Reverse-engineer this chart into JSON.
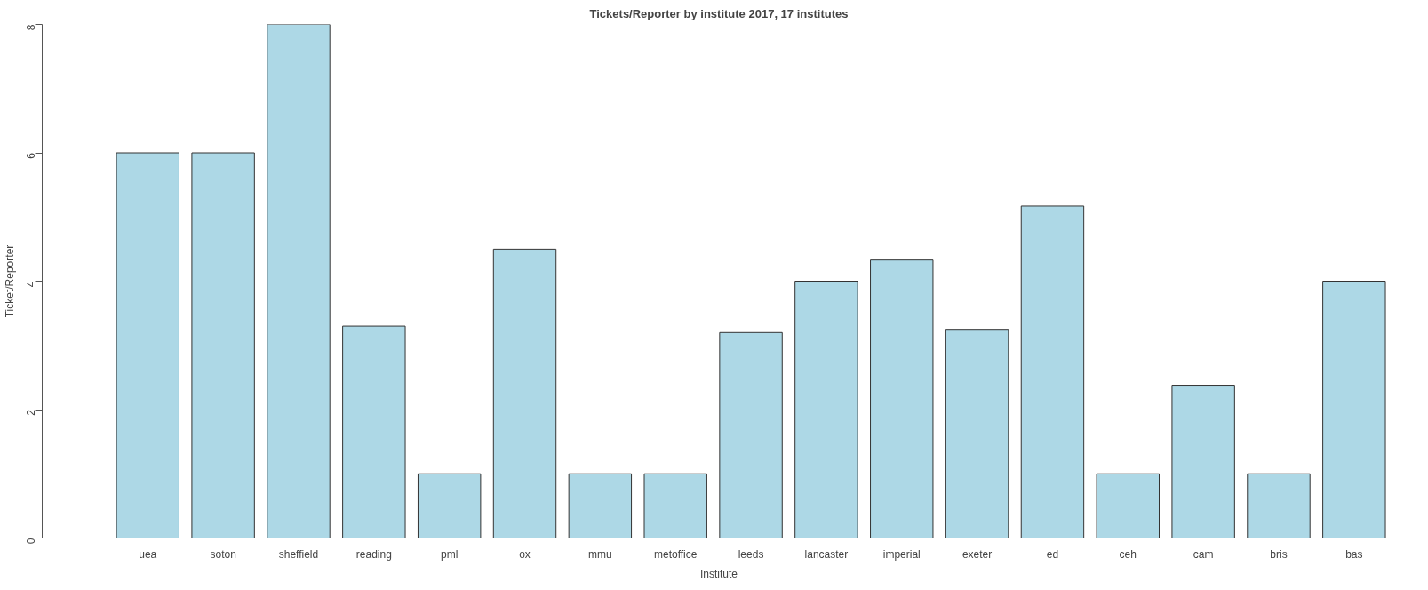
{
  "chart_data": {
    "type": "bar",
    "title": "Tickets/Reporter by institute 2017, 17 institutes",
    "xlabel": "Institute",
    "ylabel": "Ticket/Reporter",
    "categories": [
      "uea",
      "soton",
      "sheffield",
      "reading",
      "pml",
      "ox",
      "mmu",
      "metoffice",
      "leeds",
      "lancaster",
      "imperial",
      "exeter",
      "ed",
      "ceh",
      "cam",
      "bris",
      "bas"
    ],
    "values": [
      6,
      6,
      8,
      3.3,
      1,
      4.5,
      1,
      1,
      3.2,
      4,
      4.33,
      3.25,
      5.17,
      1,
      2.38,
      1,
      4
    ],
    "color": "#add8e6",
    "ylim": [
      0,
      8
    ],
    "yticks": [
      0,
      2,
      4,
      6,
      8
    ],
    "grid": false
  }
}
